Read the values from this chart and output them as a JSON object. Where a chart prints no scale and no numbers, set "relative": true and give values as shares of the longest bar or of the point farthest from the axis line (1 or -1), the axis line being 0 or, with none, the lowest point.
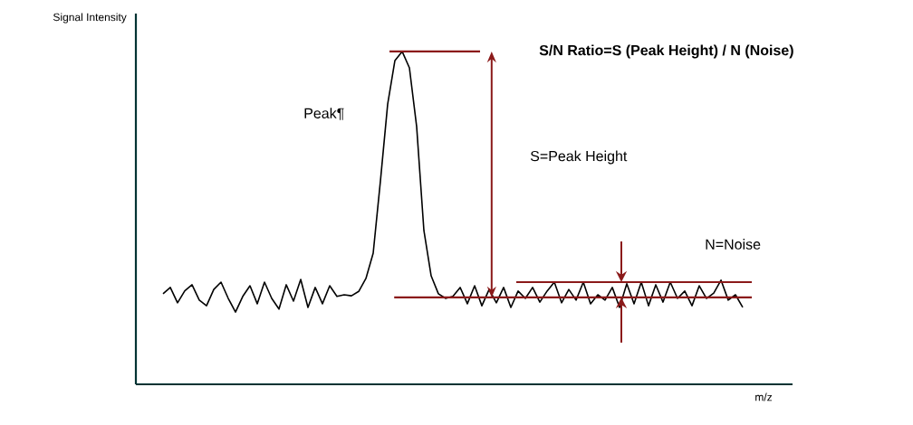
{
  "chart_data": {
    "type": "line",
    "title": "S/N Ratio=S (Peak Height) / N (Noise)",
    "xlabel": "m/z",
    "ylabel": "Signal Intensity",
    "relative": true,
    "categories": [
      null,
      null,
      null,
      null,
      null,
      null,
      null,
      null,
      null,
      null,
      null,
      null,
      null,
      null,
      null,
      null,
      null,
      null,
      null,
      null,
      null,
      null,
      null,
      null,
      null,
      null,
      null,
      null,
      null,
      null,
      null,
      null,
      null,
      null,
      null,
      null,
      null,
      null,
      null,
      null,
      null,
      null,
      null,
      null,
      null,
      null,
      null,
      null,
      null,
      null,
      null,
      null,
      null,
      null,
      null,
      null,
      null,
      null,
      null,
      null,
      null,
      null,
      null,
      null,
      null,
      null,
      null,
      null,
      null,
      null,
      null,
      null,
      null,
      null,
      null,
      null,
      null,
      null,
      null,
      null,
      null
    ],
    "series": [
      {
        "color": "#000000",
        "values": [
          0.272,
          0.291,
          0.245,
          0.281,
          0.299,
          0.253,
          0.236,
          0.285,
          0.307,
          0.258,
          0.217,
          0.264,
          0.296,
          0.242,
          0.307,
          0.258,
          0.226,
          0.299,
          0.25,
          0.315,
          0.231,
          0.291,
          0.242,
          0.296,
          0.264,
          0.269,
          0.266,
          0.279,
          0.318,
          0.394,
          0.611,
          0.842,
          0.973,
          1.0,
          0.951,
          0.774,
          0.462,
          0.326,
          0.272,
          0.258,
          0.264,
          0.291,
          0.242,
          0.296,
          0.236,
          0.285,
          0.245,
          0.291,
          0.231,
          0.28,
          0.258,
          0.291,
          0.247,
          0.28,
          0.307,
          0.245,
          0.285,
          0.253,
          0.307,
          0.242,
          0.269,
          0.253,
          0.291,
          0.231,
          0.302,
          0.242,
          0.307,
          0.236,
          0.299,
          0.247,
          0.307,
          0.258,
          0.28,
          0.236,
          0.296,
          0.258,
          0.274,
          0.313,
          0.253,
          0.269,
          0.231
        ]
      }
    ],
    "ref_lines": [
      {
        "axis": "y",
        "value": 1.0,
        "color": "#8b1a1a"
      },
      {
        "axis": "y",
        "value": 0.261,
        "color": "#8b1a1a"
      },
      {
        "axis": "y",
        "value": 0.307,
        "color": "#8b1a1a"
      }
    ],
    "annotations": [
      "Peak¶",
      "S=Peak Height",
      "N=Noise"
    ]
  }
}
